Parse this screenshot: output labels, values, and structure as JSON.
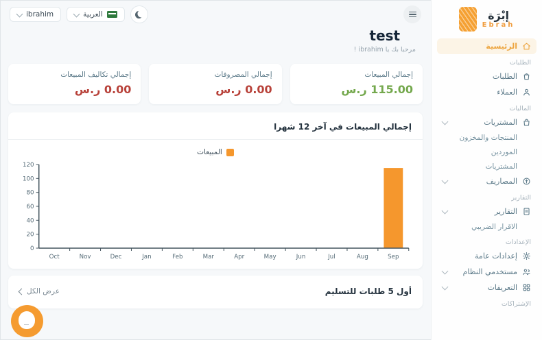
{
  "app": {
    "logo_ar": "إبْرَة",
    "logo_en": "Ebrah"
  },
  "header": {
    "user": "ibrahim",
    "language": "العربية"
  },
  "page": {
    "title": "test",
    "greeting": "مرحبا بك يا ibrahim !"
  },
  "stats": [
    {
      "label": "إجمالي المبيعات",
      "value": "115.00 ر.س",
      "color": "#74a84d"
    },
    {
      "label": "إجمالي المصروفات",
      "value": "0.00 ر.س",
      "color": "#b8423a"
    },
    {
      "label": "إجمالي تكاليف المبيعات",
      "value": "0.00 ر.س",
      "color": "#b8423a"
    }
  ],
  "chart_card": {
    "title": "إجمالي المبيعات في آخر 12 شهرا",
    "legend": "المبيعات"
  },
  "chart_data": {
    "type": "bar",
    "title": "إجمالي المبيعات في آخر 12 شهرا",
    "categories": [
      "Oct",
      "Nov",
      "Dec",
      "Jan",
      "Feb",
      "Mar",
      "Apr",
      "May",
      "Jun",
      "Jul",
      "Aug",
      "Sep"
    ],
    "series": [
      {
        "name": "المبيعات",
        "values": [
          0,
          0,
          0,
          0,
          0,
          0,
          0,
          0,
          0,
          0,
          0,
          115
        ]
      }
    ],
    "xlabel": "",
    "ylabel": "",
    "ylim": [
      0,
      120
    ],
    "ytick": 20,
    "grid": false,
    "legend_position": "top",
    "bar_color": "#f5972d",
    "axis_color": "#44555f"
  },
  "orders_card": {
    "title": "أول 5 طلبات للتسليم",
    "view_all": "عرض الكل"
  },
  "sidebar": {
    "sections": [
      {
        "header": "",
        "items": [
          {
            "label": "الرئيسية",
            "icon": "home-icon",
            "active": true
          }
        ]
      },
      {
        "header": "الطلبات",
        "items": [
          {
            "label": "الطلبات",
            "icon": "orders-icon"
          },
          {
            "label": "العملاء",
            "icon": "customers-icon"
          }
        ]
      },
      {
        "header": "الماليات",
        "items": [
          {
            "label": "المشتريات",
            "icon": "purchases-icon",
            "expandable": true,
            "children": [
              "المنتجات والمخزون",
              "الموردين",
              "المشتريات"
            ]
          },
          {
            "label": "المصاريف",
            "icon": "expenses-icon",
            "expandable": true
          }
        ]
      },
      {
        "header": "التقارير",
        "items": [
          {
            "label": "التقارير",
            "icon": "reports-icon",
            "expandable": true,
            "children": [
              "الاقرار الضريبي"
            ]
          }
        ]
      },
      {
        "header": "الإعدادات",
        "items": [
          {
            "label": "إعدادات عامة",
            "icon": "settings-icon"
          },
          {
            "label": "مستخدمي النظام",
            "icon": "system-users-icon",
            "expandable": true
          },
          {
            "label": "التعريفات",
            "icon": "definitions-icon",
            "expandable": true
          }
        ]
      },
      {
        "header": "الإشتراكات",
        "items": []
      }
    ]
  }
}
